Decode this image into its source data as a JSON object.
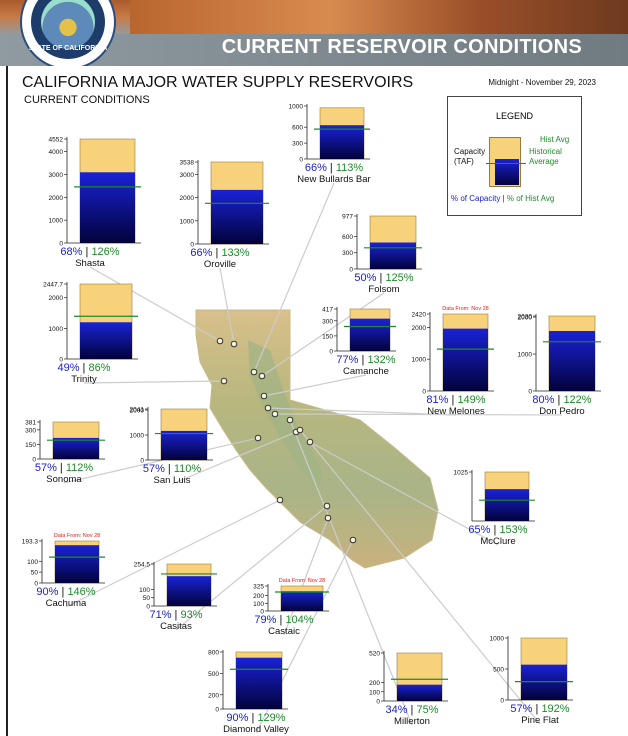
{
  "banner": {
    "title": "CURRENT RESERVOIR CONDITIONS",
    "seal_text": "STATE OF CALIFORNIA"
  },
  "header": {
    "title": "CALIFORNIA MAJOR WATER SUPPLY RESERVOIRS",
    "subtitle": "CURRENT CONDITIONS",
    "date": "Midnight - November 29, 2023"
  },
  "legend": {
    "title": "LEGEND",
    "capacity_label_1": "Capacity",
    "capacity_label_2": "(TAF)",
    "hist_avg": "Hist Avg",
    "historical_average_1": "Historical",
    "historical_average_2": "Average",
    "pct_capacity": "% of Capacity",
    "separator": " | ",
    "pct_hist_avg": "% of Hist Avg"
  },
  "colors": {
    "capacity": "#f7d27a",
    "storage_top": "#1a22d6",
    "storage_bottom": "#02023a",
    "hist_line": "#1d8a2a",
    "pct_cap_text": "#1c23c4",
    "pct_avg_text": "#1d8a2a",
    "note": "#e0201a"
  },
  "chart_data": {
    "type": "bar",
    "units": "TAF",
    "reservoirs": [
      {
        "name": "Shasta",
        "capacity": 4552,
        "pct_capacity": 68,
        "pct_hist_avg": 126,
        "ticks": [
          4552,
          4000,
          3000,
          2000,
          1000,
          0
        ],
        "note": ""
      },
      {
        "name": "Oroville",
        "capacity": 3538,
        "pct_capacity": 66,
        "pct_hist_avg": 133,
        "ticks": [
          3538,
          3000,
          2000,
          1000,
          0
        ],
        "note": ""
      },
      {
        "name": "New Bullards Bar",
        "capacity": 966,
        "pct_capacity": 66,
        "pct_hist_avg": 113,
        "ticks": [
          1000,
          600,
          300,
          0
        ],
        "note": ""
      },
      {
        "name": "Folsom",
        "capacity": 977,
        "pct_capacity": 50,
        "pct_hist_avg": 125,
        "ticks": [
          977,
          600,
          300,
          0
        ],
        "note": ""
      },
      {
        "name": "Trinity",
        "capacity": 2447.7,
        "pct_capacity": 49,
        "pct_hist_avg": 86,
        "ticks": [
          2447.7,
          2000,
          1000,
          0
        ],
        "note": ""
      },
      {
        "name": "Camanche",
        "capacity": 417,
        "pct_capacity": 77,
        "pct_hist_avg": 132,
        "ticks": [
          417,
          300,
          150,
          0
        ],
        "note": ""
      },
      {
        "name": "New Melones",
        "capacity": 2420,
        "pct_capacity": 81,
        "pct_hist_avg": 149,
        "ticks": [
          2420,
          2000,
          1000,
          0
        ],
        "note": "Data From: Nov 28"
      },
      {
        "name": "Don Pedro",
        "capacity": 2030,
        "pct_capacity": 80,
        "pct_hist_avg": 122,
        "ticks": [
          2030,
          2000,
          1000,
          0
        ],
        "note": ""
      },
      {
        "name": "Sonoma",
        "capacity": 381,
        "pct_capacity": 57,
        "pct_hist_avg": 112,
        "ticks": [
          381,
          300,
          150,
          0
        ],
        "note": ""
      },
      {
        "name": "San Luis",
        "capacity": 2041,
        "pct_capacity": 57,
        "pct_hist_avg": 110,
        "ticks": [
          2041,
          2000,
          1000,
          0
        ],
        "note": ""
      },
      {
        "name": "McClure",
        "capacity": 1025,
        "pct_capacity": 65,
        "pct_hist_avg": 153,
        "ticks": [
          1025
        ],
        "note": ""
      },
      {
        "name": "Cachuma",
        "capacity": 193.3,
        "pct_capacity": 90,
        "pct_hist_avg": 146,
        "ticks": [
          193.3,
          100,
          50,
          0
        ],
        "note": "Data From: Nov 28"
      },
      {
        "name": "Casitas",
        "capacity": 254.5,
        "pct_capacity": 71,
        "pct_hist_avg": 93,
        "ticks": [
          254.5,
          100,
          50,
          0
        ],
        "note": ""
      },
      {
        "name": "Castaic",
        "capacity": 325,
        "pct_capacity": 79,
        "pct_hist_avg": 104,
        "ticks": [
          325,
          200,
          100,
          0
        ],
        "note": "Data From: Nov 28"
      },
      {
        "name": "Diamond Valley",
        "capacity": 800,
        "pct_capacity": 90,
        "pct_hist_avg": 129,
        "ticks": [
          800,
          500,
          200,
          0
        ],
        "note": ""
      },
      {
        "name": "Millerton",
        "capacity": 520,
        "pct_capacity": 34,
        "pct_hist_avg": 75,
        "ticks": [
          520,
          200,
          100,
          0
        ],
        "note": ""
      },
      {
        "name": "Pine Flat",
        "capacity": 1000,
        "pct_capacity": 57,
        "pct_hist_avg": 192,
        "ticks": [
          1000,
          500,
          0
        ],
        "note": ""
      }
    ]
  }
}
